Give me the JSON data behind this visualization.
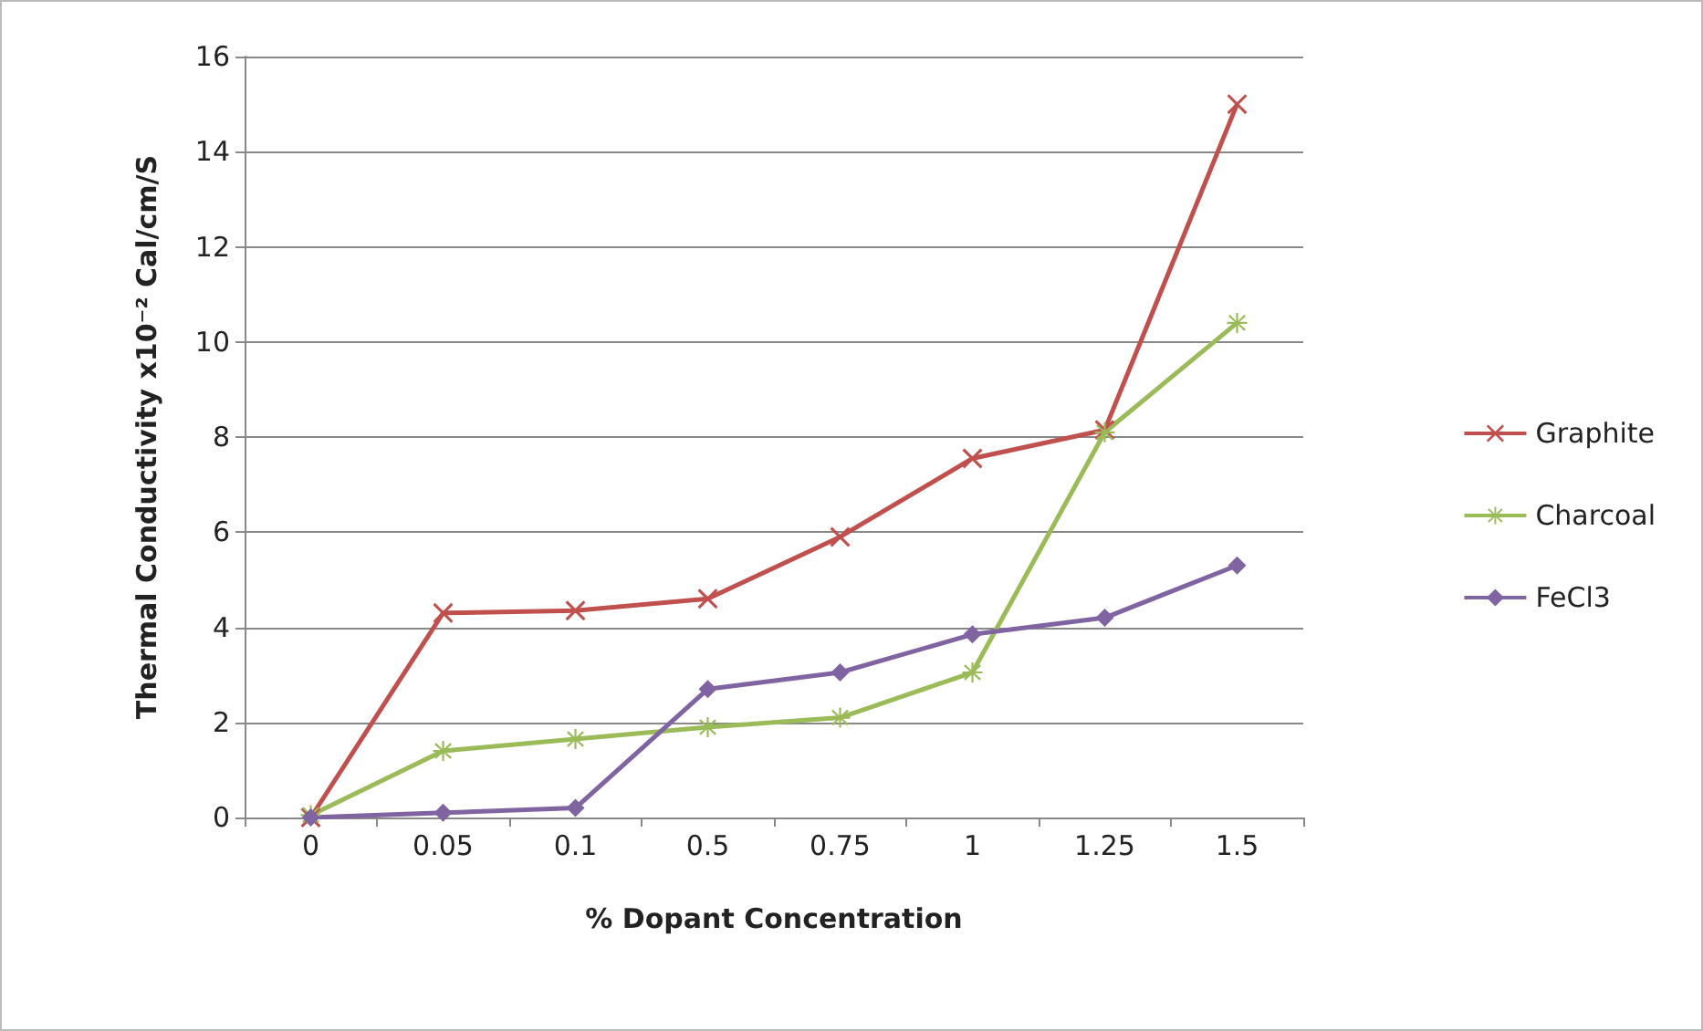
{
  "chart_data": {
    "type": "line",
    "xlabel": "% Dopant Concentration",
    "ylabel": "Thermal Conductivity x10⁻² Cal/cm/S",
    "categories": [
      "0",
      "0.05",
      "0.1",
      "0.5",
      "0.75",
      "1",
      "1.25",
      "1.5"
    ],
    "series": [
      {
        "name": "Graphite",
        "color": "#c0504d",
        "marker": "cross",
        "values": [
          0,
          4.3,
          4.35,
          4.6,
          5.9,
          7.55,
          8.15,
          15.0
        ]
      },
      {
        "name": "Charcoal",
        "color": "#9bbb59",
        "marker": "star",
        "values": [
          0.05,
          1.4,
          1.65,
          1.9,
          2.1,
          3.05,
          8.1,
          10.4
        ]
      },
      {
        "name": "FeCl3",
        "color": "#8064a2",
        "marker": "diamond",
        "values": [
          0,
          0.1,
          0.2,
          2.7,
          3.05,
          3.85,
          4.2,
          5.3
        ]
      }
    ],
    "ylim": [
      0,
      16
    ],
    "yticks": [
      0,
      2,
      4,
      6,
      8,
      10,
      12,
      14,
      16
    ],
    "grid": "y",
    "legend": "right",
    "line_style": "solid"
  }
}
